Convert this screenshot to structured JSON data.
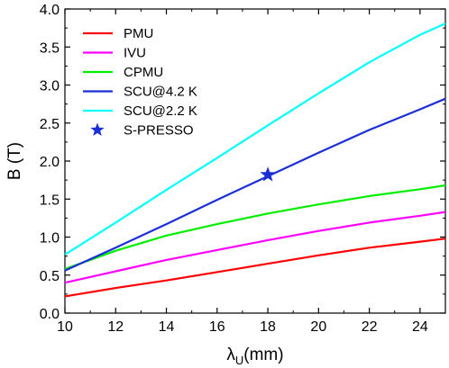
{
  "chart_data": {
    "type": "line",
    "title": "",
    "xlabel": "λU(mm)",
    "xlabel_main": "λ",
    "xlabel_sub": "U",
    "xlabel_unit": "(mm)",
    "ylabel": "B (T)",
    "xlim": [
      10,
      25
    ],
    "ylim": [
      0.0,
      4.0
    ],
    "xticks": [
      10,
      12,
      14,
      16,
      18,
      20,
      22,
      24
    ],
    "yticks": [
      0.0,
      0.5,
      1.0,
      1.5,
      2.0,
      2.5,
      3.0,
      3.5,
      4.0
    ],
    "xtick_labels": [
      "10",
      "12",
      "14",
      "16",
      "18",
      "20",
      "22",
      "24"
    ],
    "ytick_labels": [
      "0.0",
      "0.5",
      "1.0",
      "1.5",
      "2.0",
      "2.5",
      "3.0",
      "3.5",
      "4.0"
    ],
    "grid": false,
    "legend_position": "top-left",
    "x": [
      10,
      12,
      14,
      16,
      18,
      20,
      22,
      24,
      25
    ],
    "series": [
      {
        "name": "PMU",
        "color": "#ff0000",
        "values": [
          0.22,
          0.33,
          0.43,
          0.54,
          0.65,
          0.76,
          0.86,
          0.94,
          0.98
        ]
      },
      {
        "name": "IVU",
        "color": "#ff00ff",
        "values": [
          0.4,
          0.55,
          0.7,
          0.83,
          0.96,
          1.08,
          1.19,
          1.28,
          1.33
        ]
      },
      {
        "name": "CPMU",
        "color": "#00ee00",
        "values": [
          0.58,
          0.82,
          1.02,
          1.17,
          1.31,
          1.43,
          1.54,
          1.63,
          1.68
        ]
      },
      {
        "name": "SCU@4.2 K",
        "color": "#1a2fd6",
        "values": [
          0.56,
          0.86,
          1.17,
          1.49,
          1.8,
          2.11,
          2.41,
          2.68,
          2.82
        ]
      },
      {
        "name": "SCU@2.2 K",
        "color": "#00ffff",
        "values": [
          0.77,
          1.19,
          1.62,
          2.04,
          2.47,
          2.89,
          3.3,
          3.66,
          3.81
        ]
      }
    ],
    "points": [
      {
        "name": "S-PRESSO",
        "color": "#1a2fd6",
        "marker": "star",
        "x": 18,
        "y": 1.82
      }
    ]
  }
}
